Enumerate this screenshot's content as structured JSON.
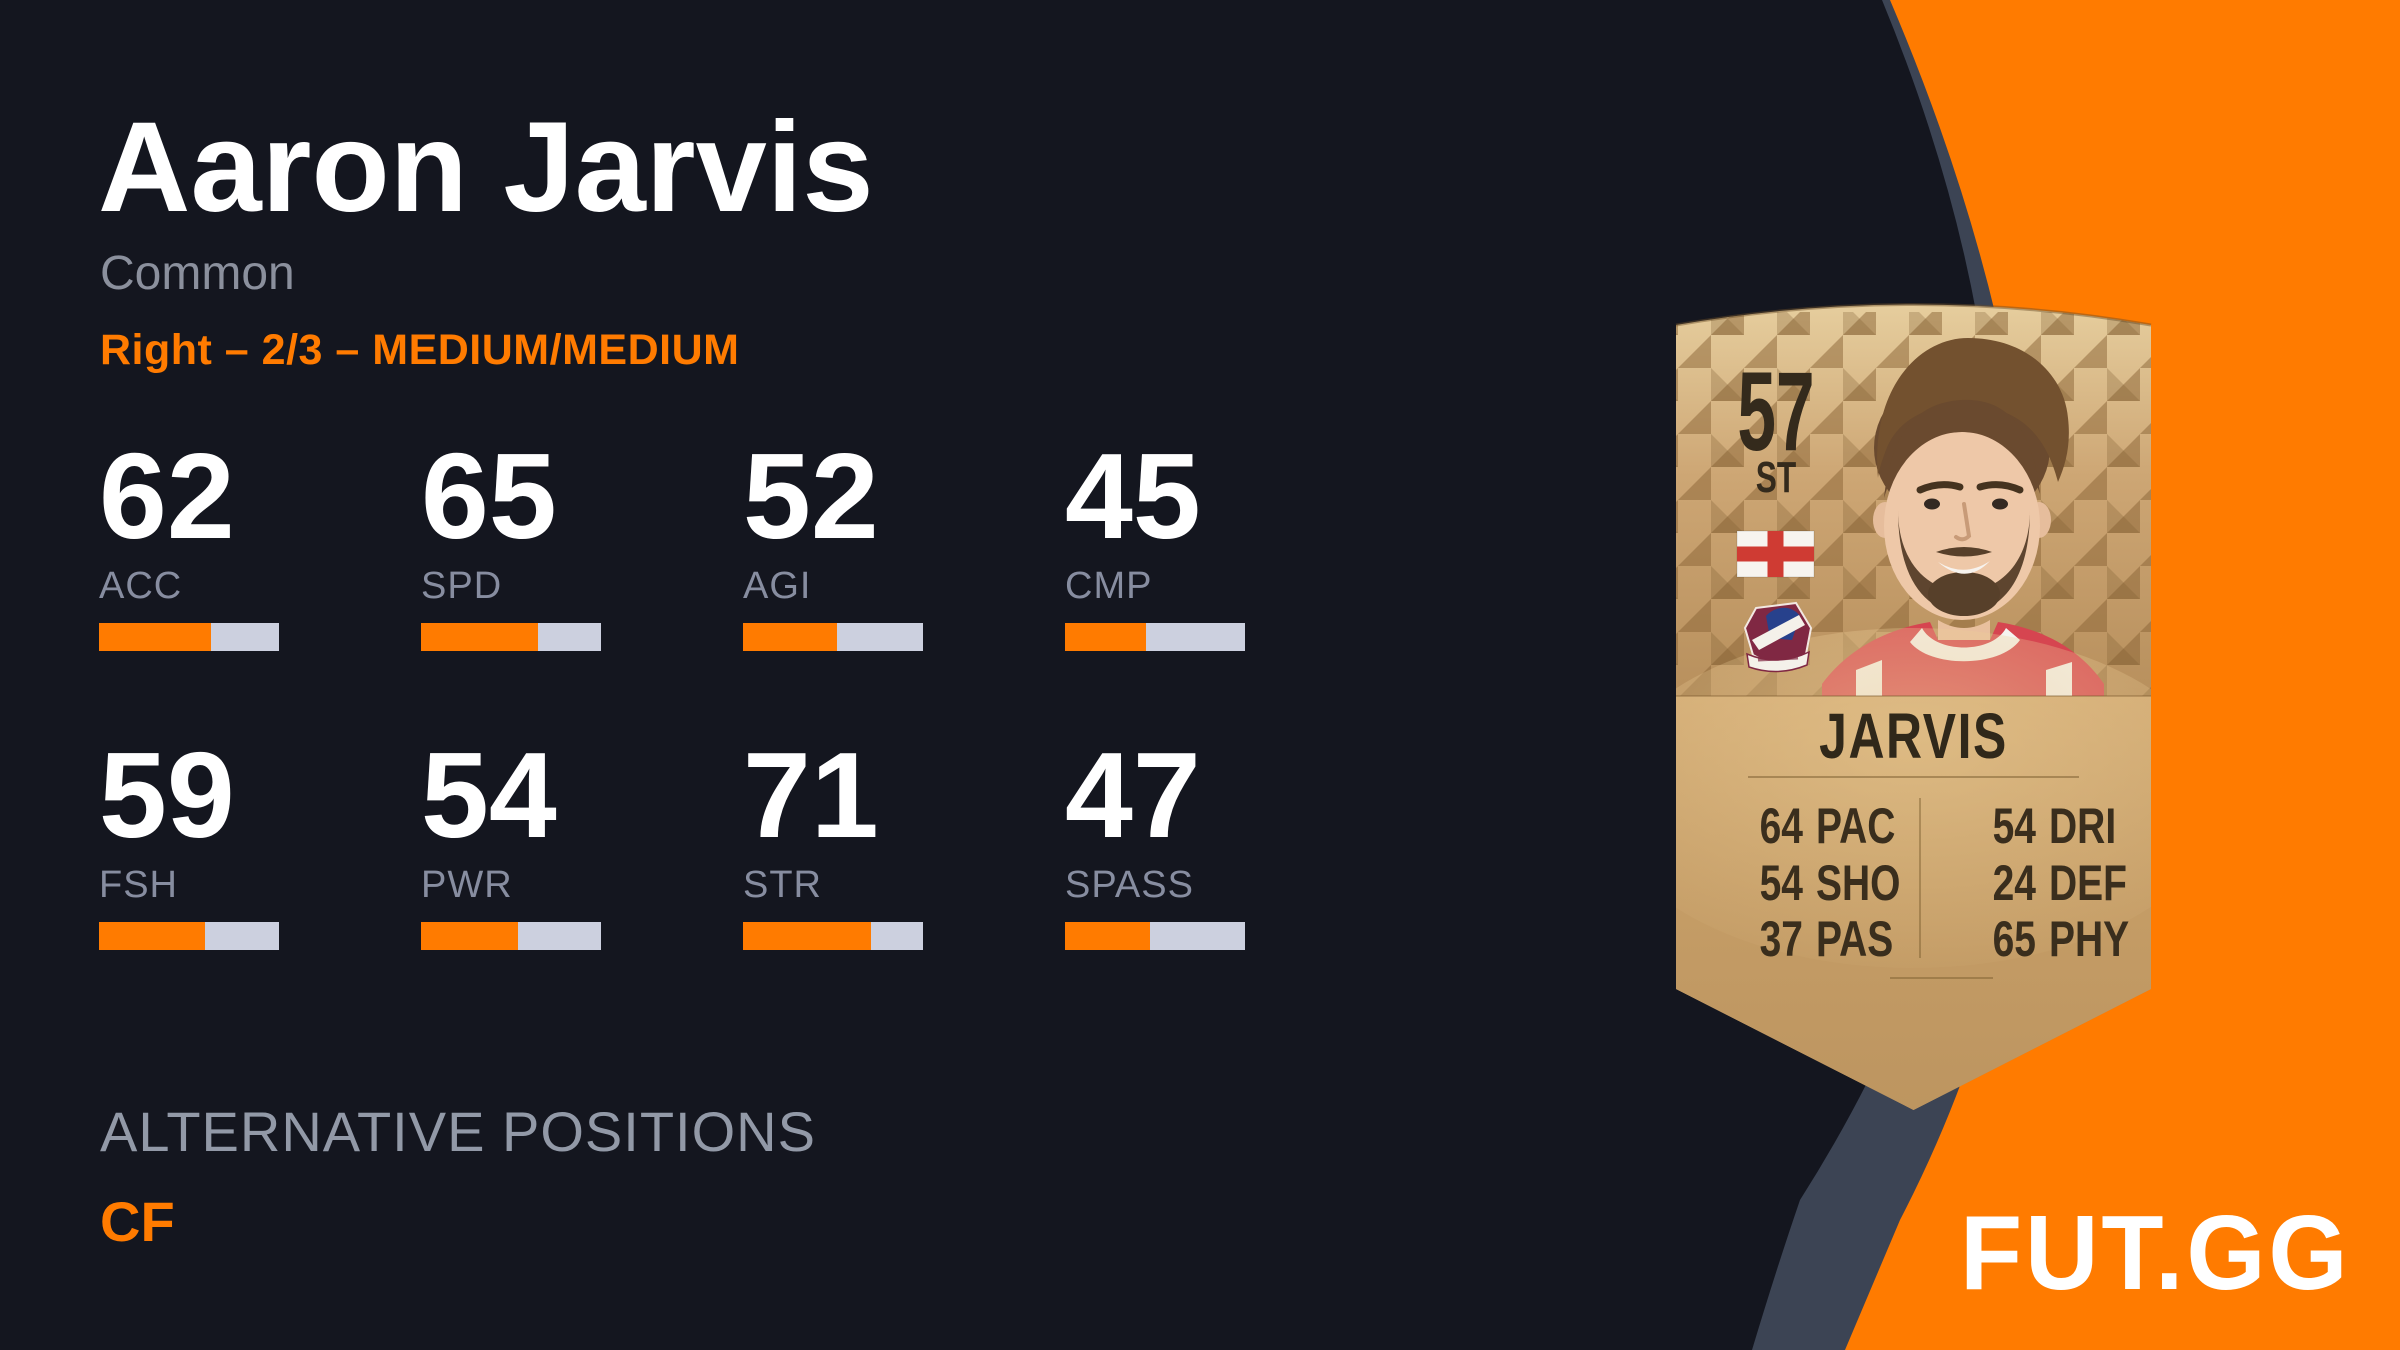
{
  "page": {
    "background_color": "#14161f",
    "accent_color": "#ff7b00",
    "curve_band_color": "#3c4454",
    "bar_track_color": "#ccd0df"
  },
  "player": {
    "name": "Aaron Jarvis",
    "rarity": "Common",
    "details_line": "Right – 2/3 – MEDIUM/MEDIUM"
  },
  "attributes": [
    {
      "label": "ACC",
      "value": 62
    },
    {
      "label": "SPD",
      "value": 65
    },
    {
      "label": "AGI",
      "value": 52
    },
    {
      "label": "CMP",
      "value": 45
    },
    {
      "label": "FSH",
      "value": 59
    },
    {
      "label": "PWR",
      "value": 54
    },
    {
      "label": "STR",
      "value": 71
    },
    {
      "label": "SPASS",
      "value": 47
    }
  ],
  "sections": {
    "alternative_positions_title": "ALTERNATIVE POSITIONS"
  },
  "alt_positions": [
    "CF"
  ],
  "card": {
    "rating": "57",
    "position": "ST",
    "name": "JARVIS",
    "nation": "England",
    "club": "Scunthorpe United",
    "card_color": "#bf9764",
    "stats_left": [
      {
        "value": 64,
        "label": "PAC"
      },
      {
        "value": 54,
        "label": "SHO"
      },
      {
        "value": 37,
        "label": "PAS"
      }
    ],
    "stats_right": [
      {
        "value": 54,
        "label": "DRI"
      },
      {
        "value": 24,
        "label": "DEF"
      },
      {
        "value": 65,
        "label": "PHY"
      }
    ]
  },
  "branding": {
    "logo_text": "FUT.GG"
  }
}
